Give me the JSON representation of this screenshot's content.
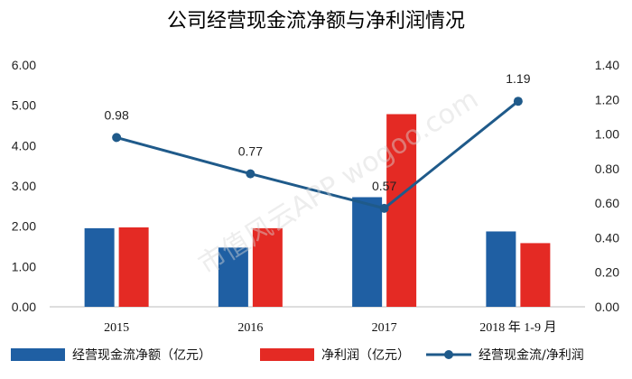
{
  "chart_data": {
    "type": "bar",
    "title": "公司经营现金流净额与净利润情况",
    "categories": [
      "2015",
      "2016",
      "2017",
      "2018 年 1-9 月"
    ],
    "series": [
      {
        "name": "经营现金流净额（亿元）",
        "type": "bar",
        "axis": "left",
        "color": "#1f5fa3",
        "values": [
          1.95,
          1.47,
          2.72,
          1.87
        ]
      },
      {
        "name": "净利润（亿元）",
        "type": "bar",
        "axis": "left",
        "color": "#e42a24",
        "values": [
          1.97,
          1.95,
          4.78,
          1.58
        ]
      },
      {
        "name": "经营现金流/净利润",
        "type": "line",
        "axis": "right",
        "color": "#1f5a8a",
        "values": [
          0.98,
          0.77,
          0.57,
          1.19
        ],
        "labels": [
          "0.98",
          "0.77",
          "0.57",
          "1.19"
        ]
      }
    ],
    "y_left": {
      "min": 0,
      "max": 6,
      "step": 1,
      "ticks": [
        "0.00",
        "1.00",
        "2.00",
        "3.00",
        "4.00",
        "5.00",
        "6.00"
      ]
    },
    "y_right": {
      "min": 0,
      "max": 1.4,
      "step": 0.2,
      "ticks": [
        "0.00",
        "0.20",
        "0.40",
        "0.60",
        "0.80",
        "1.00",
        "1.20",
        "1.40"
      ]
    },
    "grid": false,
    "legend_position": "bottom"
  },
  "watermark": "市值风云APP  wogoo.com"
}
